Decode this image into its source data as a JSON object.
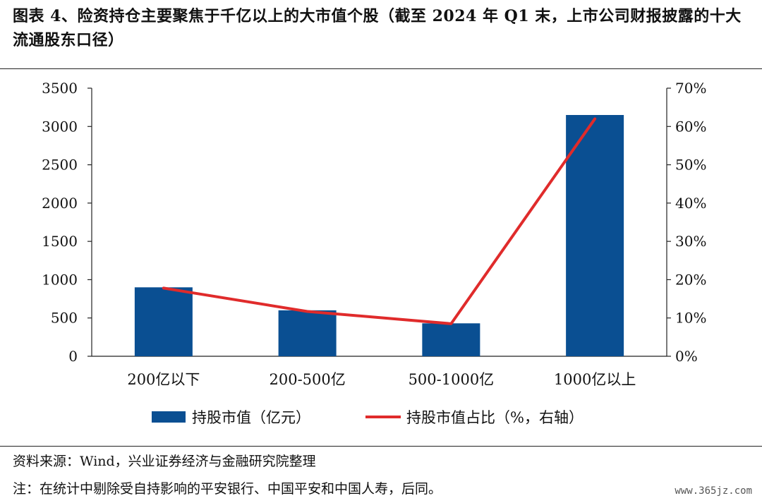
{
  "figure": {
    "title": "图表 4、险资持仓主要聚焦于千亿以上的大市值个股（截至 2024 年 Q1 末，上市公司财报披露的十大流通股东口径）",
    "source": "资料来源：Wind，兴业证券经济与金融研究院整理",
    "footnote": "注：在统计中剔除受自持影响的平安银行、中国平安和中国人寿，后同。",
    "watermark": "www.365jz.com"
  },
  "chart_data": {
    "type": "bar",
    "categories": [
      "200亿以下",
      "200-500亿",
      "500-1000亿",
      "1000亿以上"
    ],
    "series": [
      {
        "name": "持股市值（亿元）",
        "type": "bar",
        "axis": "left",
        "values": [
          900,
          600,
          430,
          3150
        ],
        "color": "#0a4f92"
      },
      {
        "name": "持股市值占比（%，右轴）",
        "type": "line",
        "axis": "right",
        "values": [
          17.8,
          11.7,
          8.5,
          62.0
        ],
        "color": "#e02b2b"
      }
    ],
    "y_left": {
      "range": [
        0,
        3500
      ],
      "ticks": [
        "0",
        "500",
        "1000",
        "1500",
        "2000",
        "2500",
        "3000",
        "3500"
      ]
    },
    "y_right": {
      "range": [
        0,
        70
      ],
      "ticks": [
        "0%",
        "10%",
        "20%",
        "30%",
        "40%",
        "50%",
        "60%",
        "70%"
      ]
    },
    "grid": false,
    "legend_position": "bottom"
  }
}
